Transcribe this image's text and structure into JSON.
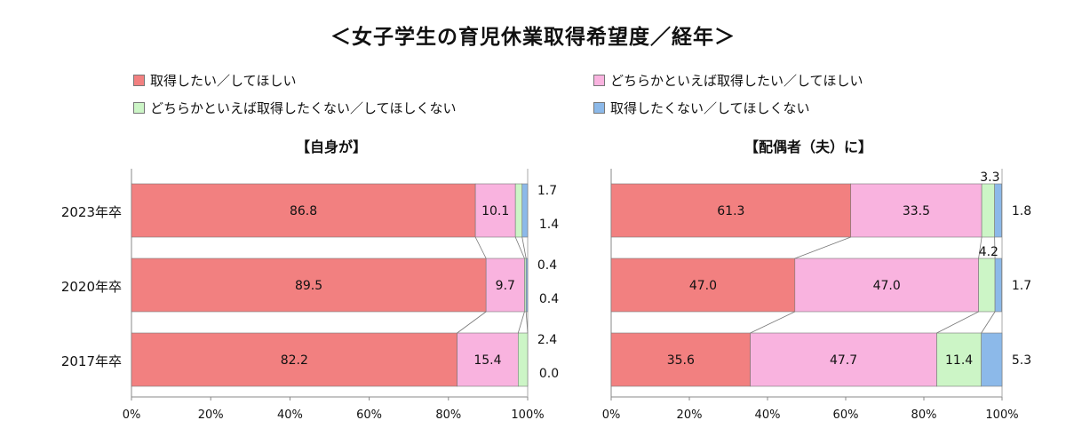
{
  "title": "＜女子学生の育児休業取得希望度／経年＞",
  "colors": [
    "#f28080",
    "#f9b3df",
    "#ccf5c6",
    "#8cb9e9"
  ],
  "chart_data": [
    {
      "type": "bar",
      "orientation": "horizontal",
      "stacked": true,
      "title": "【自身が】",
      "categories": [
        "2023年卒",
        "2020年卒",
        "2017年卒"
      ],
      "series": [
        {
          "name": "取得したい／してほしい",
          "values": [
            86.8,
            89.5,
            82.2
          ]
        },
        {
          "name": "どちらかといえば取得したい／してほしい",
          "values": [
            10.1,
            9.7,
            15.4
          ]
        },
        {
          "name": "どちらかといえば取得したくない／してほしくない",
          "values": [
            1.7,
            0.4,
            2.4
          ]
        },
        {
          "name": "取得したくない／してほしくない",
          "values": [
            1.4,
            0.4,
            0.0
          ]
        }
      ],
      "xlim": [
        0,
        100
      ],
      "x_ticks": [
        "0%",
        "20%",
        "40%",
        "60%",
        "80%",
        "100%"
      ]
    },
    {
      "type": "bar",
      "orientation": "horizontal",
      "stacked": true,
      "title": "【配偶者（夫）に】",
      "categories": [
        "2023年卒",
        "2020年卒",
        "2017年卒"
      ],
      "series": [
        {
          "name": "取得したい／してほしい",
          "values": [
            61.3,
            47.0,
            35.6
          ]
        },
        {
          "name": "どちらかといえば取得したい／してほしい",
          "values": [
            33.5,
            47.0,
            47.7
          ]
        },
        {
          "name": "どちらかといえば取得したくない／してほしくない",
          "values": [
            3.3,
            4.2,
            11.4
          ]
        },
        {
          "name": "取得したくない／してほしくない",
          "values": [
            1.8,
            1.7,
            5.3
          ]
        }
      ],
      "xlim": [
        0,
        100
      ],
      "x_ticks": [
        "0%",
        "20%",
        "40%",
        "60%",
        "80%",
        "100%"
      ]
    }
  ]
}
